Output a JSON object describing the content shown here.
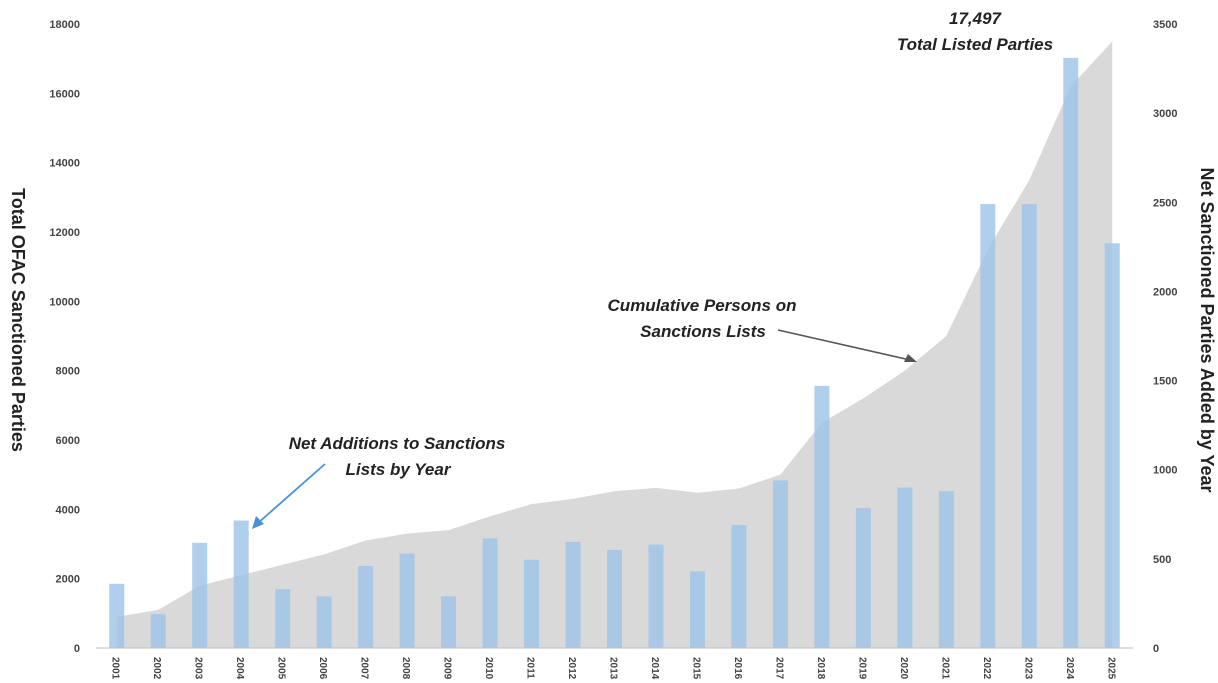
{
  "chart_data": {
    "type": "bar",
    "title": "",
    "ylabel": "Total OFAC Sanctioned Parties",
    "ylabel_right": "Net Sanctioned Parties Added by Year",
    "ylim": [
      0,
      18000
    ],
    "ylim_right": [
      0,
      3500
    ],
    "y_ticks": [
      "18000",
      "16000",
      "14000",
      "12000",
      "10000",
      "8000",
      "6000",
      "4000",
      "2000",
      "0"
    ],
    "y_ticks_right": [
      "3500",
      "3000",
      "2500",
      "2000",
      "1500",
      "1000",
      "500",
      "0"
    ],
    "categories": [
      "2001",
      "2002",
      "2003",
      "2004",
      "2005",
      "2006",
      "2007",
      "2008",
      "2009",
      "2010",
      "2011",
      "2012",
      "2013",
      "2014",
      "2015",
      "2016",
      "2017",
      "2018",
      "2019",
      "2020",
      "2021",
      "2022",
      "2023",
      "2024",
      "2025"
    ],
    "series": [
      {
        "name": "Net Additions to Sanctions Lists by Year",
        "type": "bar",
        "axis": "right",
        "color": "#9fc5e8",
        "values": [
          360,
          190,
          590,
          715,
          330,
          290,
          460,
          530,
          290,
          615,
          495,
          595,
          550,
          580,
          430,
          690,
          940,
          1470,
          785,
          900,
          880,
          2490,
          2490,
          3310,
          2270
        ]
      },
      {
        "name": "Cumulative Persons on Sanctions Lists",
        "type": "area",
        "axis": "left",
        "color": "#d9d9d9",
        "values": [
          900,
          1100,
          1800,
          2100,
          2400,
          2700,
          3100,
          3300,
          3400,
          3800,
          4150,
          4300,
          4520,
          4620,
          4480,
          4600,
          5000,
          6500,
          7200,
          8000,
          9000,
          11500,
          13500,
          16200,
          17497
        ]
      }
    ],
    "annotations": {
      "total_value": "17,497",
      "total_label": "Total Listed Parties",
      "cumulative_line1": "Cumulative Persons on",
      "cumulative_line2": "Sanctions Lists",
      "net_line1": "Net Additions to Sanctions",
      "net_line2": "Lists by Year"
    },
    "grid": false,
    "legend": "none"
  }
}
